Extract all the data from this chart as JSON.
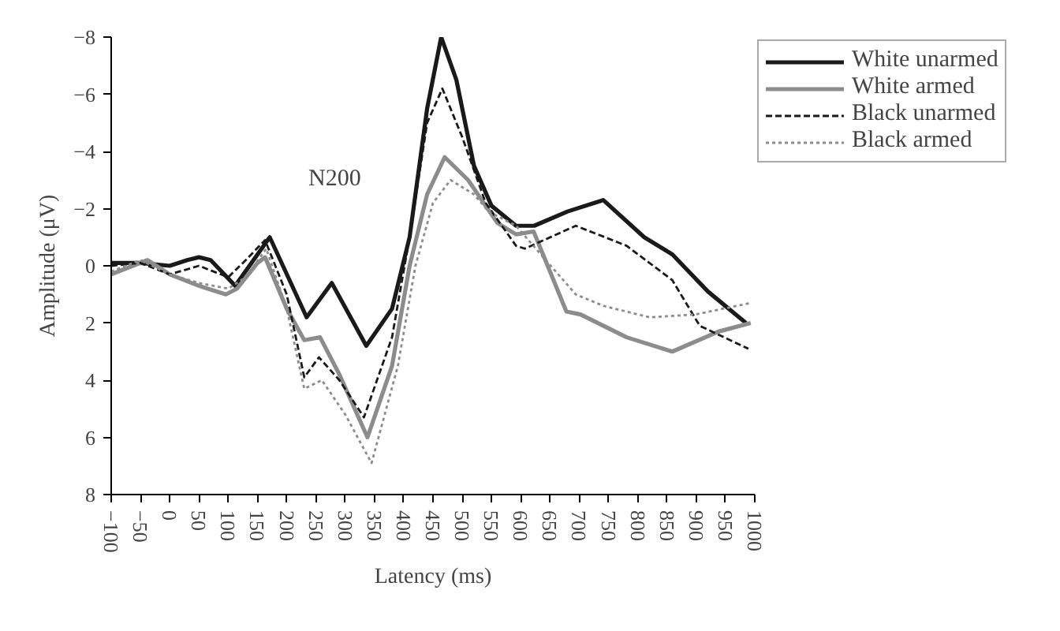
{
  "chart_data": {
    "type": "line",
    "xlabel": "Latency (ms)",
    "ylabel": "Amplitude (μV)",
    "xlim": [
      -100,
      1000
    ],
    "ylim": [
      8,
      -8
    ],
    "xticks": [
      {
        "value": -100,
        "label": "−100"
      },
      {
        "value": -50,
        "label": "−50"
      },
      0,
      50,
      100,
      150,
      200,
      250,
      300,
      350,
      400,
      450,
      500,
      550,
      600,
      650,
      700,
      750,
      800,
      850,
      900,
      950,
      {
        "value": 1000,
        "label": "1000"
      }
    ],
    "yticks": [
      {
        "value": -8,
        "label": "−8"
      },
      {
        "value": -6,
        "label": "−6"
      },
      {
        "value": -4,
        "label": "−4"
      },
      {
        "value": -2,
        "label": "−2"
      },
      0,
      2,
      4,
      6,
      8
    ],
    "grid": false,
    "legend": "top right",
    "annotations": [
      "N200"
    ],
    "series": [
      {
        "name": "White unarmed",
        "color": "#1a1a1a",
        "line_style": "solid",
        "x": [
          -100,
          -50,
          0,
          30,
          50,
          70,
          112,
          171,
          234,
          277,
          336,
          380,
          410,
          440,
          464,
          490,
          520,
          550,
          592,
          623,
          680,
          741,
          811,
          859,
          920,
          985
        ],
        "values": [
          -0.1,
          -0.1,
          0,
          -0.2,
          -0.3,
          -0.2,
          0.7,
          -1.0,
          1.8,
          0.6,
          2.8,
          1.5,
          -1.0,
          -5.5,
          -8.0,
          -6.5,
          -3.5,
          -2.1,
          -1.4,
          -1.4,
          -1.9,
          -2.3,
          -1.0,
          -0.4,
          0.9,
          2.0
        ]
      },
      {
        "name": "White armed",
        "color": "#8c8c8c",
        "line_style": "solid",
        "x": [
          -100,
          -38,
          0,
          50,
          96,
          115,
          150,
          163,
          200,
          230,
          257,
          290,
          338,
          380,
          410,
          440,
          470,
          510,
          560,
          592,
          622,
          678,
          702,
          781,
          859,
          938,
          993
        ],
        "values": [
          0.3,
          -0.2,
          0.3,
          0.7,
          1.0,
          0.8,
          -0.1,
          -0.3,
          1.5,
          2.6,
          2.5,
          3.8,
          6.0,
          3.5,
          0,
          -2.5,
          -3.8,
          -3.0,
          -1.5,
          -1.1,
          -1.2,
          1.6,
          1.7,
          2.5,
          3.0,
          2.3,
          2.0
        ]
      },
      {
        "name": "Black unarmed",
        "color": "#1a1a1a",
        "line_style": "dashed",
        "x": [
          -100,
          -50,
          0,
          50,
          100,
          130,
          163,
          200,
          230,
          255,
          290,
          332,
          380,
          410,
          440,
          466,
          500,
          540,
          592,
          607,
          694,
          781,
          859,
          906,
          989
        ],
        "values": [
          0,
          -0.1,
          0.3,
          0,
          0.4,
          -0.2,
          -0.9,
          1.0,
          3.9,
          3.2,
          4.0,
          5.3,
          2.5,
          -1.0,
          -5.0,
          -6.2,
          -4.5,
          -2.2,
          -0.7,
          -0.6,
          -1.4,
          -0.7,
          0.5,
          2.1,
          2.9
        ]
      },
      {
        "name": "Black armed",
        "color": "#8c8c8c",
        "line_style": "dotted",
        "x": [
          -100,
          -50,
          0,
          50,
          100,
          130,
          165,
          200,
          230,
          260,
          300,
          345,
          390,
          420,
          450,
          480,
          520,
          545,
          592,
          647,
          694,
          741,
          820,
          899,
          993
        ],
        "values": [
          0.2,
          -0.2,
          0.3,
          0.6,
          0.8,
          0.4,
          -0.6,
          1.5,
          4.3,
          4.0,
          5.2,
          6.9,
          3.5,
          0,
          -2.2,
          -3.0,
          -2.5,
          -1.9,
          -1.4,
          -0.1,
          1.0,
          1.4,
          1.8,
          1.7,
          1.3
        ]
      }
    ]
  }
}
